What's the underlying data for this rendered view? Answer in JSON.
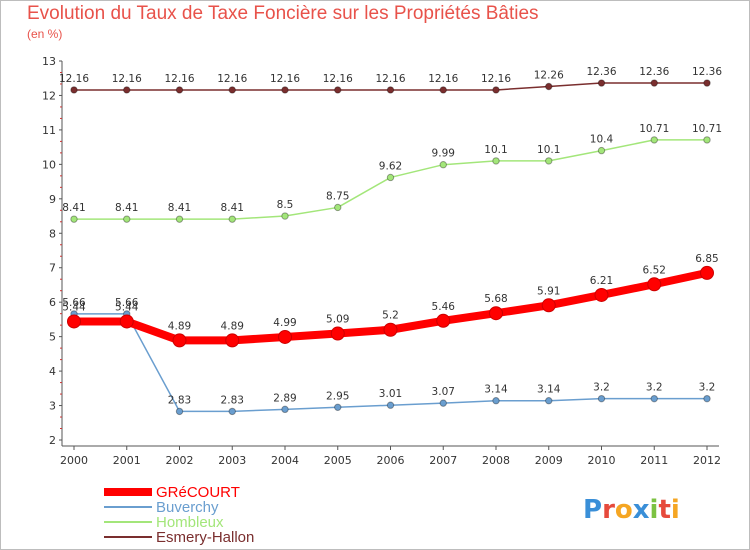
{
  "chart_data": {
    "type": "line",
    "title": "Evolution du Taux de Taxe Foncière sur les Propriétés Bâties",
    "ylabel": "(en %)",
    "xlabel": "",
    "x": [
      "2000",
      "2001",
      "2002",
      "2003",
      "2004",
      "2005",
      "2006",
      "2007",
      "2008",
      "2009",
      "2010",
      "2011",
      "2012"
    ],
    "ylim": [
      2,
      13
    ],
    "yticks": [
      2,
      3,
      4,
      5,
      6,
      7,
      8,
      9,
      10,
      11,
      12,
      13
    ],
    "grid": false,
    "legend": "bottom-left",
    "series": [
      {
        "name": "GRéCOURT",
        "color": "#ff0000",
        "values": [
          5.44,
          5.44,
          4.89,
          4.89,
          4.99,
          5.09,
          5.2,
          5.46,
          5.68,
          5.91,
          6.21,
          6.52,
          6.85
        ],
        "labels": [
          "5.44",
          "5.44",
          "4.89",
          "4.89",
          "4.99",
          "5.09",
          "5.2",
          "5.46",
          "5.68",
          "5.91",
          "6.21",
          "6.52",
          "6.85"
        ]
      },
      {
        "name": "Buverchy",
        "color": "#6a9ecf",
        "values": [
          5.66,
          5.66,
          2.83,
          2.83,
          2.89,
          2.95,
          3.01,
          3.07,
          3.14,
          3.14,
          3.2,
          3.2,
          3.2
        ],
        "labels": [
          "5.66",
          "5.66",
          "2.83",
          "2.83",
          "2.89",
          "2.95",
          "3.01",
          "3.07",
          "3.14",
          "3.14",
          "3.2",
          "3.2",
          "3.2"
        ]
      },
      {
        "name": "Hombleux",
        "color": "#a3e67a",
        "values": [
          8.41,
          8.41,
          8.41,
          8.41,
          8.5,
          8.75,
          9.62,
          9.99,
          10.1,
          10.1,
          10.4,
          10.71,
          10.71
        ],
        "labels": [
          "8.41",
          "8.41",
          "8.41",
          "8.41",
          "8.5",
          "8.75",
          "9.62",
          "9.99",
          "10.1",
          "10.1",
          "10.4",
          "10.71",
          "10.71"
        ]
      },
      {
        "name": "Esmery-Hallon",
        "color": "#7a2e2e",
        "values": [
          12.16,
          12.16,
          12.16,
          12.16,
          12.16,
          12.16,
          12.16,
          12.16,
          12.16,
          12.26,
          12.36,
          12.36,
          12.36
        ],
        "labels": [
          "12.16",
          "12.16",
          "12.16",
          "12.16",
          "12.16",
          "12.16",
          "12.16",
          "12.16",
          "12.16",
          "12.26",
          "12.36",
          "12.36",
          "12.36"
        ]
      }
    ]
  },
  "logo": {
    "text": "Proxiti",
    "letters": [
      "P",
      "r",
      "o",
      "x",
      "i",
      "t",
      "i"
    ],
    "colors": [
      "#3a8fd8",
      "#e64a3c",
      "#f5a623",
      "#3a8fd8",
      "#7cc242",
      "#e64a3c",
      "#f5a623"
    ]
  }
}
